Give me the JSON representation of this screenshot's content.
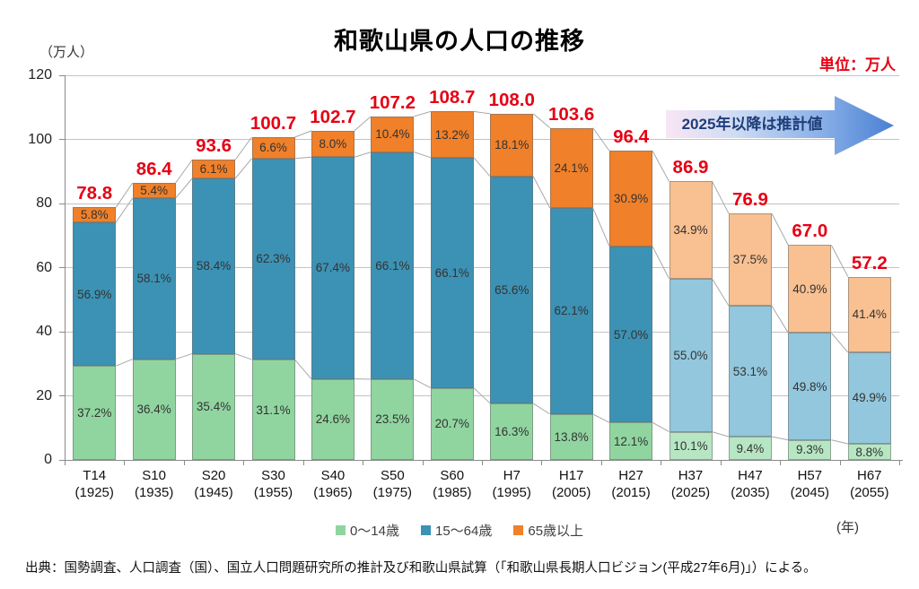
{
  "chart": {
    "title": "和歌山県の人口の推移",
    "unit_note": "単位：万人",
    "y_unit": "（万人）",
    "x_unit": "(年)",
    "annotation": "2025年以降は推計値",
    "source": "出典：国勢調査、人口調査（国）、国立人口問題研究所の推計及び和歌山県試算（「和歌山県長期人口ビジョン(平成27年6月)」）による。"
  },
  "colors": {
    "actual": {
      "green": "#90d5a0",
      "blue": "#3c92b4",
      "orange": "#f0802a"
    },
    "projected": {
      "green": "#b7e6c3",
      "blue": "#92c7dd",
      "orange": "#f9c091"
    },
    "total_label": "#e60014",
    "grid": "#c3c3c3",
    "series_line": "#a8a8a8"
  },
  "chart_data": {
    "type": "bar",
    "stacked": true,
    "title": "和歌山県の人口の推移",
    "ylabel": "（万人）",
    "xlabel": "(年)",
    "ylim": [
      0,
      120
    ],
    "yticks": [
      0,
      20,
      40,
      60,
      80,
      100,
      120
    ],
    "grid": true,
    "legend": [
      "0〜14歳",
      "15〜64歳",
      "65歳以上"
    ],
    "legend_position": "bottom",
    "annotation": "2025年以降は推計値",
    "projected_from_index": 10,
    "categories": [
      {
        "era": "T14",
        "year": "(1925)",
        "total": 78.8,
        "pct": [
          37.2,
          56.9,
          5.8
        ],
        "projected": false
      },
      {
        "era": "S10",
        "year": "(1935)",
        "total": 86.4,
        "pct": [
          36.4,
          58.1,
          5.4
        ],
        "projected": false
      },
      {
        "era": "S20",
        "year": "(1945)",
        "total": 93.6,
        "pct": [
          35.4,
          58.4,
          6.1
        ],
        "projected": false
      },
      {
        "era": "S30",
        "year": "(1955)",
        "total": 100.7,
        "pct": [
          31.1,
          62.3,
          6.6
        ],
        "projected": false
      },
      {
        "era": "S40",
        "year": "(1965)",
        "total": 102.7,
        "pct": [
          24.6,
          67.4,
          8.0
        ],
        "projected": false
      },
      {
        "era": "S50",
        "year": "(1975)",
        "total": 107.2,
        "pct": [
          23.5,
          66.1,
          10.4
        ],
        "projected": false
      },
      {
        "era": "S60",
        "year": "(1985)",
        "total": 108.7,
        "pct": [
          20.7,
          66.1,
          13.2
        ],
        "projected": false
      },
      {
        "era": "H7",
        "year": "(1995)",
        "total": 108.0,
        "pct": [
          16.3,
          65.6,
          18.1
        ],
        "projected": false
      },
      {
        "era": "H17",
        "year": "(2005)",
        "total": 103.6,
        "pct": [
          13.8,
          62.1,
          24.1
        ],
        "projected": false
      },
      {
        "era": "H27",
        "year": "(2015)",
        "total": 96.4,
        "pct": [
          12.1,
          57.0,
          30.9
        ],
        "projected": false
      },
      {
        "era": "H37",
        "year": "(2025)",
        "total": 86.9,
        "pct": [
          10.1,
          55.0,
          34.9
        ],
        "projected": true
      },
      {
        "era": "H47",
        "year": "(2035)",
        "total": 76.9,
        "pct": [
          9.4,
          53.1,
          37.5
        ],
        "projected": true
      },
      {
        "era": "H57",
        "year": "(2045)",
        "total": 67.0,
        "pct": [
          9.3,
          49.8,
          40.9
        ],
        "projected": true
      },
      {
        "era": "H67",
        "year": "(2055)",
        "total": 57.2,
        "pct": [
          8.8,
          49.9,
          41.4
        ],
        "projected": true
      }
    ],
    "series": [
      {
        "name": "0〜14歳",
        "pct": [
          37.2,
          36.4,
          35.4,
          31.1,
          24.6,
          23.5,
          20.7,
          16.3,
          13.8,
          12.1,
          10.1,
          9.4,
          9.3,
          8.8
        ]
      },
      {
        "name": "15〜64歳",
        "pct": [
          56.9,
          58.1,
          58.4,
          62.3,
          67.4,
          66.1,
          66.1,
          65.6,
          62.1,
          57.0,
          55.0,
          53.1,
          49.8,
          49.9
        ]
      },
      {
        "name": "65歳以上",
        "pct": [
          5.8,
          5.4,
          6.1,
          6.6,
          8.0,
          10.4,
          13.2,
          18.1,
          24.1,
          30.9,
          34.9,
          37.5,
          40.9,
          41.4
        ]
      }
    ],
    "totals": [
      78.8,
      86.4,
      93.6,
      100.7,
      102.7,
      107.2,
      108.7,
      108.0,
      103.6,
      96.4,
      86.9,
      76.9,
      67.0,
      57.2
    ]
  }
}
